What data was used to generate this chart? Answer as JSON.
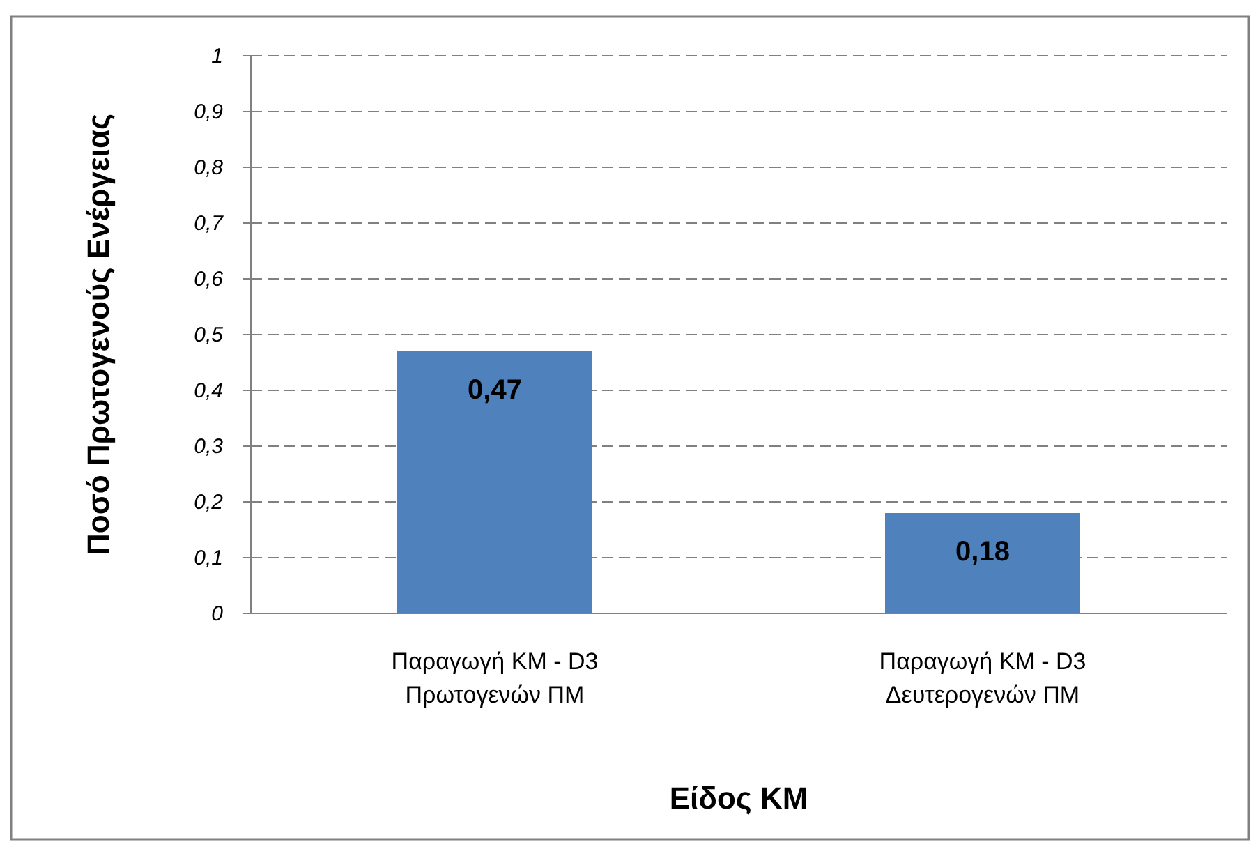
{
  "chart_data": {
    "type": "bar",
    "xlabel": "Είδος  ΚΜ",
    "ylabel": "Ποσό  Πρωτογενούς  Ενέργειας",
    "categories": [
      "Παραγωγή ΚΜ - D3\nΠρωτογενών ΠΜ",
      "Παραγωγή ΚΜ - D3\nΔευτερογενών ΠΜ"
    ],
    "values": [
      0.47,
      0.18
    ],
    "color": "#4f81bd",
    "value_labels": [
      "0,47",
      "0,18"
    ],
    "ylim": [
      0,
      1
    ],
    "yticks": [
      {
        "value": 0,
        "label": "0"
      },
      {
        "value": 0.1,
        "label": "0,1"
      },
      {
        "value": 0.2,
        "label": "0,2"
      },
      {
        "value": 0.3,
        "label": "0,3"
      },
      {
        "value": 0.4,
        "label": "0,4"
      },
      {
        "value": 0.5,
        "label": "0,5"
      },
      {
        "value": 0.6,
        "label": "0,6"
      },
      {
        "value": 0.7,
        "label": "0,7"
      },
      {
        "value": 0.8,
        "label": "0,8"
      },
      {
        "value": 0.9,
        "label": "0,9"
      },
      {
        "value": 1,
        "label": "1"
      }
    ],
    "grid": "y"
  }
}
